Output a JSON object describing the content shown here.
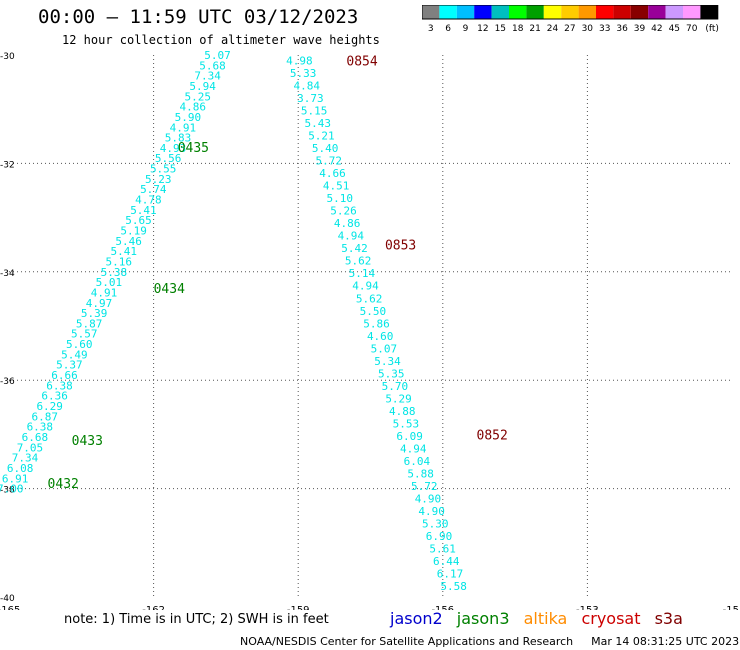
{
  "title": "00:00 – 11:59 UTC 03/12/2023",
  "subtitle": "12 hour collection of altimeter wave heights",
  "colorbar": {
    "colors": [
      "#808080",
      "#00ffff",
      "#00bfff",
      "#0000ff",
      "#00bfbf",
      "#00ff00",
      "#00a000",
      "#ffff00",
      "#ffcc00",
      "#ff9900",
      "#ff0000",
      "#cc0000",
      "#880000",
      "#990099",
      "#cc99ff",
      "#ff99ff",
      "#000000"
    ],
    "labels": [
      "3",
      "6",
      "9",
      "12",
      "15",
      "18",
      "21",
      "24",
      "27",
      "30",
      "33",
      "36",
      "39",
      "42",
      "45",
      "70",
      "(ft)"
    ]
  },
  "axes": {
    "lon_ticks": [
      "-165",
      "-162",
      "-159",
      "-156",
      "-153",
      "-15"
    ],
    "lat_ticks": [
      "-30",
      "-32",
      "-34",
      "-36",
      "-38",
      "-40"
    ],
    "lon_range": [
      -165,
      -150
    ],
    "lat_range": [
      -40,
      -30
    ]
  },
  "passes": [
    {
      "name": "west",
      "color": "#00e5e5",
      "start": [
        -160.4,
        -30.0
      ],
      "end": [
        -164.7,
        -38.0
      ],
      "values": [
        "5.07",
        "5.68",
        "7.34",
        "5.94",
        "5.25",
        "4.86",
        "5.90",
        "4.91",
        "5.83",
        "4.93",
        "5.56",
        "5.55",
        "5.23",
        "5.74",
        "4.78",
        "5.41",
        "5.65",
        "5.19",
        "5.46",
        "5.41",
        "5.16",
        "5.38",
        "5.01",
        "4.91",
        "4.97",
        "5.39",
        "5.87",
        "5.57",
        "5.60",
        "5.49",
        "5.37",
        "6.66",
        "6.38",
        "6.36",
        "6.29",
        "6.87",
        "6.38",
        "6.68",
        "7.05",
        "7.34",
        "6.08",
        "6.91",
        "7.00"
      ]
    },
    {
      "name": "east",
      "color": "#00e5e5",
      "start": [
        -158.7,
        -30.1
      ],
      "end": [
        -155.5,
        -39.8
      ],
      "values": [
        "4.98",
        "5.33",
        "4.84",
        "3.73",
        "5.15",
        "5.43",
        "5.21",
        "5.40",
        "5.72",
        "4.66",
        "4.51",
        "5.10",
        "5.26",
        "4.86",
        "4.94",
        "5.42",
        "5.62",
        "5.14",
        "4.94",
        "5.62",
        "5.50",
        "5.86",
        "4.60",
        "5.07",
        "5.34",
        "5.35",
        "5.70",
        "5.29",
        "4.88",
        "5.53",
        "6.09",
        "4.94",
        "6.04",
        "5.88",
        "5.72",
        "4.90",
        "4.90",
        "5.30",
        "6.90",
        "5.61",
        "6.44",
        "6.17",
        "5.58"
      ]
    }
  ],
  "time_labels": [
    {
      "text": "0854",
      "color": "#800000",
      "lon": -158.0,
      "lat": -30.1
    },
    {
      "text": "0435",
      "color": "#008000",
      "lon": -161.5,
      "lat": -31.7
    },
    {
      "text": "0853",
      "color": "#800000",
      "lon": -157.2,
      "lat": -33.5
    },
    {
      "text": "0434",
      "color": "#008000",
      "lon": -162.0,
      "lat": -34.3
    },
    {
      "text": "0852",
      "color": "#800000",
      "lon": -155.3,
      "lat": -37.0
    },
    {
      "text": "0433",
      "color": "#008000",
      "lon": -163.7,
      "lat": -37.1
    },
    {
      "text": "0432",
      "color": "#008000",
      "lon": -164.2,
      "lat": -37.9
    }
  ],
  "note": "note: 1) Time is in UTC; 2) SWH is in feet",
  "legend": [
    {
      "label": "jason2",
      "color": "#0000cc"
    },
    {
      "label": "jason3",
      "color": "#008000"
    },
    {
      "label": "altika",
      "color": "#ff8c00"
    },
    {
      "label": "cryosat",
      "color": "#cc0000"
    },
    {
      "label": "s3a",
      "color": "#800000"
    }
  ],
  "footer": {
    "credit": "NOAA/NESDIS Center for Satellite Applications and Research",
    "timestamp": "Mar 14 08:31:25 UTC 2023"
  }
}
